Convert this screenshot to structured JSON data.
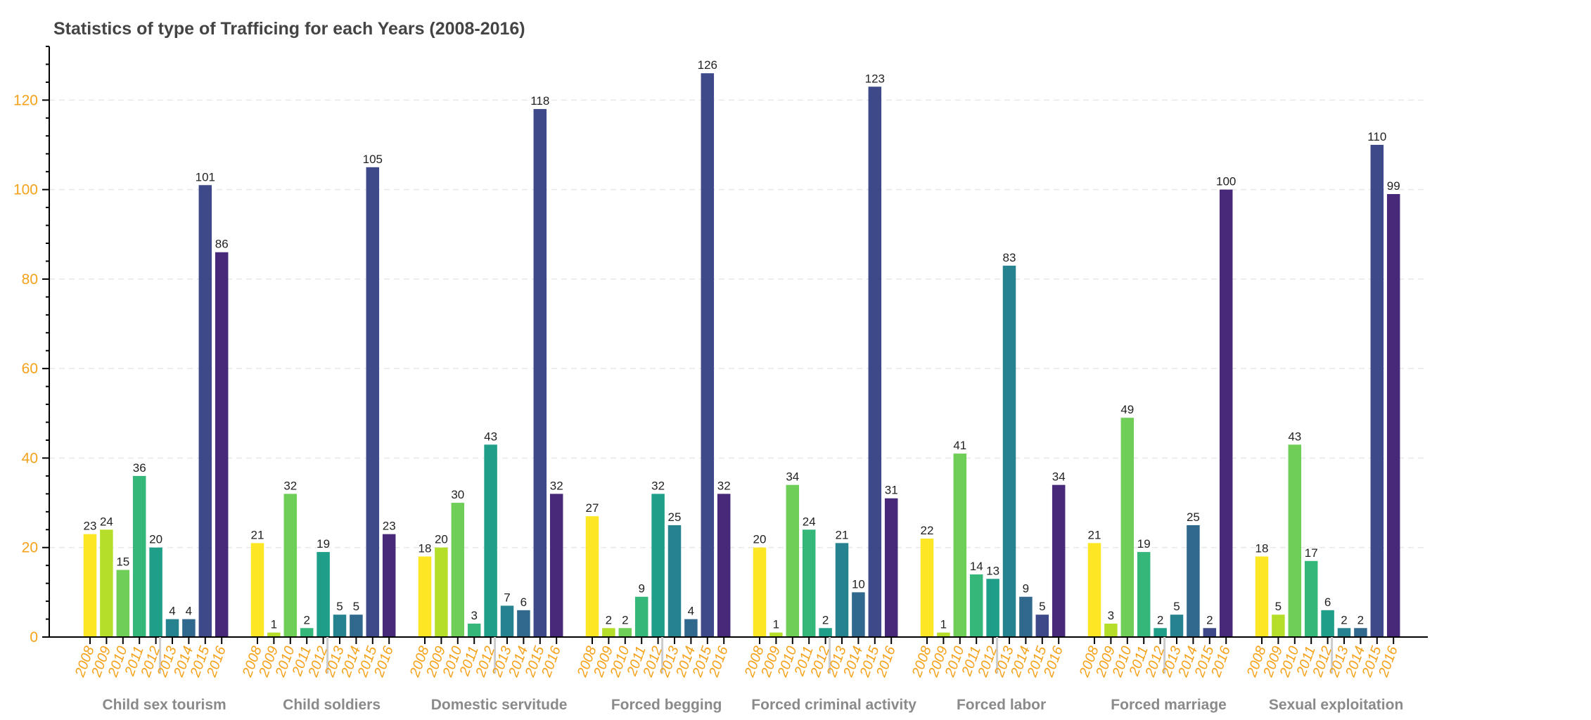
{
  "chart_data": {
    "type": "bar",
    "title": "Statistics of type of Trafficing for each Years (2008-2016)",
    "xlabel": "",
    "ylabel": "",
    "ylim": [
      0,
      132
    ],
    "yticks": [
      0,
      20,
      40,
      60,
      80,
      100,
      120
    ],
    "grid": true,
    "years": [
      "2008",
      "2009",
      "2010",
      "2011",
      "2012",
      "2013",
      "2014",
      "2015",
      "2016"
    ],
    "year_colors": [
      "#fde725",
      "#b5de2b",
      "#6ece58",
      "#35b779",
      "#1f9e89",
      "#26828e",
      "#31688e",
      "#3e4989",
      "#482878"
    ],
    "groups": [
      {
        "name": "Child sex tourism",
        "bars": [
          {
            "year": "2008",
            "value": 23
          },
          {
            "year": "2009",
            "value": 24
          },
          {
            "year": "2010",
            "value": 15
          },
          {
            "year": "2011",
            "value": 36
          },
          {
            "year": "2012",
            "value": 20
          },
          {
            "year": "2013",
            "value": 4
          },
          {
            "year": "2014",
            "value": 4
          },
          {
            "year": "2015",
            "value": 101
          },
          {
            "year": "2016",
            "value": 86
          }
        ]
      },
      {
        "name": "Child soldiers",
        "bars": [
          {
            "year": "2008",
            "value": 21
          },
          {
            "year": "2009",
            "value": 1
          },
          {
            "year": "2010",
            "value": 32
          },
          {
            "year": "2011",
            "value": 2
          },
          {
            "year": "2012",
            "value": 19
          },
          {
            "year": "2013",
            "value": 5
          },
          {
            "year": "2014",
            "value": 5
          },
          {
            "year": "2015",
            "value": 105
          },
          {
            "year": "2016",
            "value": 23
          }
        ]
      },
      {
        "name": "Domestic servitude",
        "bars": [
          {
            "year": "2008",
            "value": 18
          },
          {
            "year": "2009",
            "value": 20
          },
          {
            "year": "2010",
            "value": 30
          },
          {
            "year": "2011",
            "value": 3
          },
          {
            "year": "2012",
            "value": 43
          },
          {
            "year": "2013",
            "value": 7
          },
          {
            "year": "2014",
            "value": 6
          },
          {
            "year": "2015",
            "value": 118
          },
          {
            "year": "2016",
            "value": 32
          }
        ]
      },
      {
        "name": "Forced begging",
        "bars": [
          {
            "year": "2008",
            "value": 27
          },
          {
            "year": "2009",
            "value": 2
          },
          {
            "year": "2010",
            "value": 2
          },
          {
            "year": "2011",
            "value": 9
          },
          {
            "year": "2012",
            "value": 32
          },
          {
            "year": "2013",
            "value": 25
          },
          {
            "year": "2014",
            "value": 4
          },
          {
            "year": "2015",
            "value": 126
          },
          {
            "year": "2016",
            "value": 32
          }
        ]
      },
      {
        "name": "Forced criminal activity",
        "bars": [
          {
            "year": "2008",
            "value": 20
          },
          {
            "year": "2009",
            "value": 1
          },
          {
            "year": "2010",
            "value": 34
          },
          {
            "year": "2011",
            "value": 24
          },
          {
            "year": "2012",
            "value": 2
          },
          {
            "year": "2013",
            "value": 21
          },
          {
            "year": "2014",
            "value": 10
          },
          {
            "year": "2015",
            "value": 123
          },
          {
            "year": "2016",
            "value": 31
          }
        ]
      },
      {
        "name": "Forced labor",
        "bars": [
          {
            "year": "2008",
            "value": 22
          },
          {
            "year": "2009",
            "value": 1
          },
          {
            "year": "2010",
            "value": 41
          },
          {
            "year": "2011",
            "value": 14
          },
          {
            "year": "2012",
            "value": 13
          },
          {
            "year": "2013",
            "value": 83
          },
          {
            "year": "2014",
            "value": 9
          },
          {
            "year": "2015",
            "value": 5
          },
          {
            "year": "2016",
            "value": 34
          }
        ]
      },
      {
        "name": "Forced marriage",
        "bars": [
          {
            "year": "2008",
            "value": 21
          },
          {
            "year": "2009",
            "value": 3
          },
          {
            "year": "2010",
            "value": 49
          },
          {
            "year": "2011",
            "value": 19
          },
          {
            "year": "2012",
            "value": 2
          },
          {
            "year": "2013",
            "value": 5
          },
          {
            "year": "2014",
            "value": 25
          },
          {
            "year": "2015",
            "value": 2
          },
          {
            "year": "2016",
            "value": 100
          }
        ]
      },
      {
        "name": "Sexual exploitation",
        "bars": [
          {
            "year": "2008",
            "value": 18
          },
          {
            "year": "2009",
            "value": 5
          },
          {
            "year": "2010",
            "value": 43
          },
          {
            "year": "2011",
            "value": 17
          },
          {
            "year": "2012",
            "value": 6
          },
          {
            "year": "2013",
            "value": 2
          },
          {
            "year": "2014",
            "value": 2
          },
          {
            "year": "2015",
            "value": 110
          },
          {
            "year": "2016",
            "value": 99
          }
        ]
      }
    ]
  }
}
